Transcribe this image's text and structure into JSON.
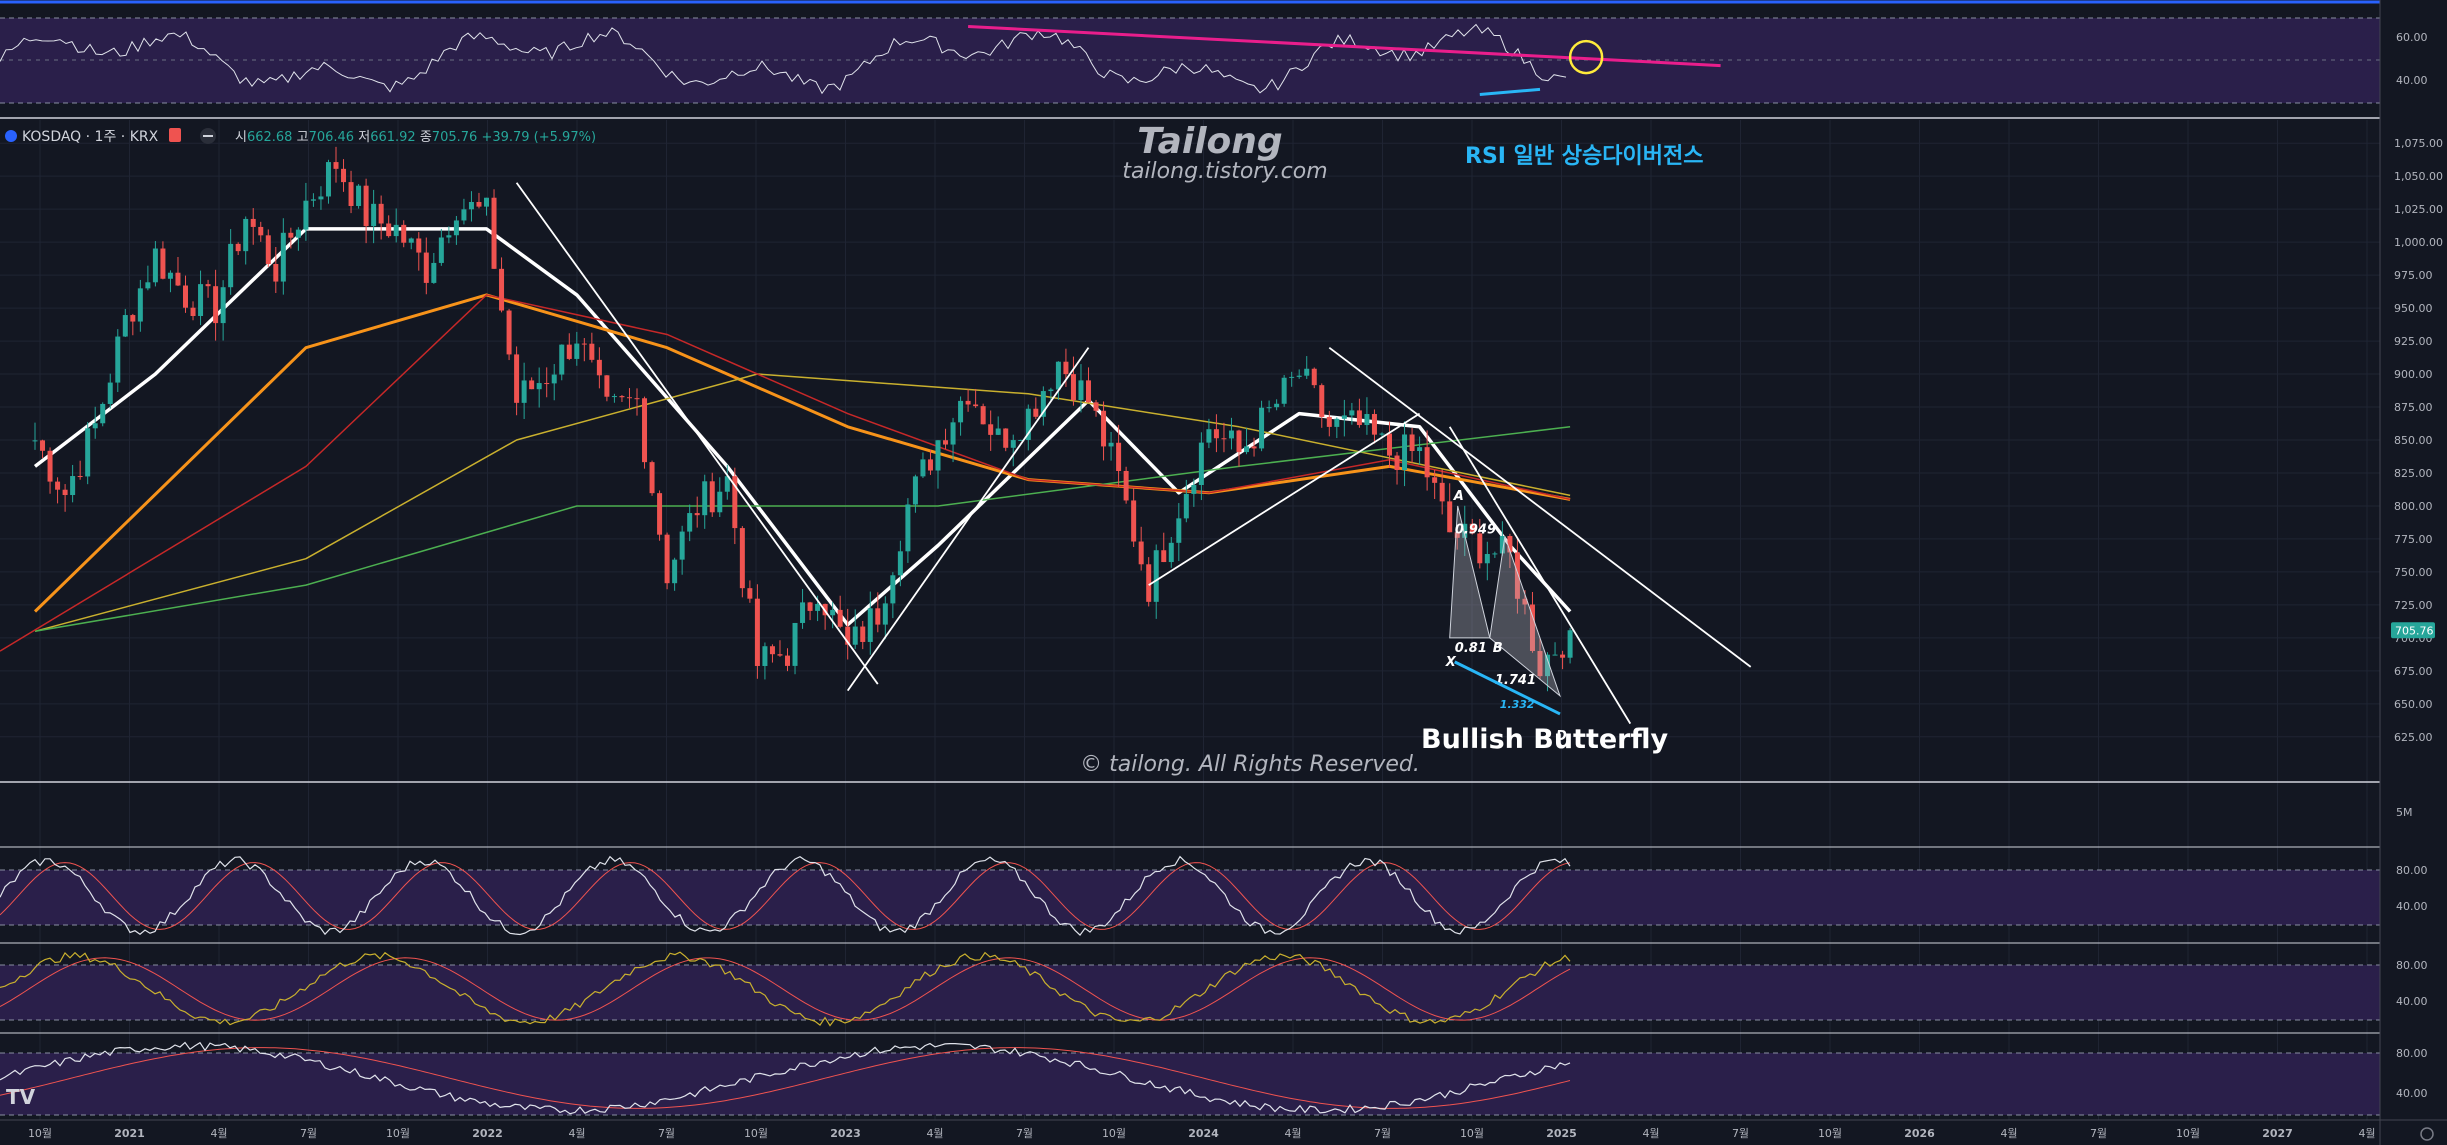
{
  "header": {
    "symbol": "KOSDAQ · 1주 · KRX",
    "open_label": "시",
    "open": "662.68",
    "high_label": "고",
    "high": "706.46",
    "low_label": "저",
    "low": "661.92",
    "close_label": "종",
    "close": "705.76",
    "change": "+39.79 (+5.97%)"
  },
  "watermark": {
    "brand": "Tailong",
    "site": "tailong.tistory.com",
    "copyright": "© tailong. All Rights Reserved."
  },
  "annotations": {
    "rsi_divergence": "RSI 일반 상승다이버전스",
    "pattern_name": "Bullish Butterfly",
    "pattern_points": {
      "X": "X",
      "A": "A",
      "B": "B",
      "D": "D"
    },
    "ratios": {
      "ab": "0.81",
      "bc": "0.949",
      "cd": "1.741",
      "xd": "1.332"
    }
  },
  "price_axis": {
    "ticks": [
      "1,075.00",
      "1,050.00",
      "1,025.00",
      "1,000.00",
      "975.00",
      "950.00",
      "925.00",
      "900.00",
      "875.00",
      "850.00",
      "825.00",
      "800.00",
      "775.00",
      "750.00",
      "725.00",
      "700.00",
      "675.00",
      "650.00",
      "625.00"
    ],
    "last_price_badge": "705.76"
  },
  "rsi_axis": {
    "ticks": [
      "60.00",
      "40.00"
    ]
  },
  "volume_axis": {
    "ticks": [
      "5M"
    ]
  },
  "osc1_axis": {
    "ticks": [
      "80.00",
      "40.00"
    ]
  },
  "osc2_axis": {
    "ticks": [
      "80.00",
      "40.00"
    ]
  },
  "osc3_axis": {
    "ticks": [
      "80.00",
      "40.00"
    ]
  },
  "time_axis": {
    "ticks": [
      "10월",
      "2021",
      "4월",
      "7월",
      "10월",
      "2022",
      "4월",
      "7월",
      "10월",
      "2023",
      "4월",
      "7월",
      "10월",
      "2024",
      "4월",
      "7월",
      "10월",
      "2025",
      "4월",
      "7월",
      "10월",
      "2026",
      "4월",
      "7월",
      "10월",
      "2027",
      "4월"
    ]
  },
  "logo": "TV",
  "colors": {
    "background": "#131722",
    "bull": "#26a69a",
    "bear": "#ef5350",
    "ma_fast": "#ffffff",
    "ma_mid": "#f7931a",
    "ma_slow": "#c62828",
    "ma_long_yellow": "#c9b02e",
    "ma_long_green": "#4caf50",
    "rsi_trend": "#e91e8c",
    "divergence": "#29b6f6",
    "band": "#2a1f4a"
  },
  "chart_data": {
    "type": "candlestick",
    "title": "",
    "ylim": [
      615,
      1085
    ],
    "x_range": [
      "2020-09",
      "2027-04"
    ],
    "last_close": 705.76,
    "ohlc_latest": {
      "open": 662.68,
      "high": 706.46,
      "low": 661.92,
      "close": 705.76,
      "change": 39.79,
      "change_pct": 5.97
    },
    "close_path": [
      {
        "date": "2020-09",
        "close": 850
      },
      {
        "date": "2020-10",
        "close": 810
      },
      {
        "date": "2020-11",
        "close": 860
      },
      {
        "date": "2020-12",
        "close": 940
      },
      {
        "date": "2021-01",
        "close": 990
      },
      {
        "date": "2021-02",
        "close": 960
      },
      {
        "date": "2021-03",
        "close": 950
      },
      {
        "date": "2021-04",
        "close": 1020
      },
      {
        "date": "2021-05",
        "close": 980
      },
      {
        "date": "2021-06",
        "close": 1030
      },
      {
        "date": "2021-07",
        "close": 1060
      },
      {
        "date": "2021-08",
        "close": 1020
      },
      {
        "date": "2021-09",
        "close": 1010
      },
      {
        "date": "2021-10",
        "close": 980
      },
      {
        "date": "2021-11",
        "close": 1030
      },
      {
        "date": "2021-12",
        "close": 1020
      },
      {
        "date": "2022-01",
        "close": 880
      },
      {
        "date": "2022-02",
        "close": 900
      },
      {
        "date": "2022-03",
        "close": 930
      },
      {
        "date": "2022-04",
        "close": 870
      },
      {
        "date": "2022-05",
        "close": 880
      },
      {
        "date": "2022-06",
        "close": 750
      },
      {
        "date": "2022-07",
        "close": 800
      },
      {
        "date": "2022-08",
        "close": 820
      },
      {
        "date": "2022-09",
        "close": 680
      },
      {
        "date": "2022-10",
        "close": 690
      },
      {
        "date": "2022-11",
        "close": 740
      },
      {
        "date": "2022-12",
        "close": 690
      },
      {
        "date": "2023-01",
        "close": 720
      },
      {
        "date": "2023-02",
        "close": 800
      },
      {
        "date": "2023-03",
        "close": 850
      },
      {
        "date": "2023-04",
        "close": 890
      },
      {
        "date": "2023-05",
        "close": 850
      },
      {
        "date": "2023-06",
        "close": 870
      },
      {
        "date": "2023-07",
        "close": 910
      },
      {
        "date": "2023-08",
        "close": 880
      },
      {
        "date": "2023-09",
        "close": 820
      },
      {
        "date": "2023-10",
        "close": 740
      },
      {
        "date": "2023-11",
        "close": 800
      },
      {
        "date": "2023-12",
        "close": 860
      },
      {
        "date": "2024-01",
        "close": 840
      },
      {
        "date": "2024-02",
        "close": 870
      },
      {
        "date": "2024-03",
        "close": 900
      },
      {
        "date": "2024-04",
        "close": 860
      },
      {
        "date": "2024-05",
        "close": 860
      },
      {
        "date": "2024-06",
        "close": 840
      },
      {
        "date": "2024-07",
        "close": 840
      },
      {
        "date": "2024-08",
        "close": 780
      },
      {
        "date": "2024-09",
        "close": 770
      },
      {
        "date": "2024-10",
        "close": 760
      },
      {
        "date": "2024-11",
        "close": 680
      },
      {
        "date": "2024-12",
        "close": 705.76
      }
    ],
    "moving_averages": [
      {
        "points": [
          {
            "date": "2020-09",
            "value": 830
          },
          {
            "date": "2021-01",
            "value": 900
          },
          {
            "date": "2021-06",
            "value": 1010
          },
          {
            "date": "2021-12",
            "value": 1010
          },
          {
            "date": "2022-03",
            "value": 960
          },
          {
            "date": "2022-08",
            "value": 830
          },
          {
            "date": "2022-12",
            "value": 710
          },
          {
            "date": "2023-03",
            "value": 770
          },
          {
            "date": "2023-08",
            "value": 880
          },
          {
            "date": "2023-11",
            "value": 810
          },
          {
            "date": "2024-03",
            "value": 870
          },
          {
            "date": "2024-07",
            "value": 860
          },
          {
            "date": "2024-10",
            "value": 770
          },
          {
            "date": "2024-12",
            "value": 720
          }
        ]
      },
      {
        "points": [
          {
            "date": "2020-09",
            "value": 720
          },
          {
            "date": "2021-06",
            "value": 920
          },
          {
            "date": "2021-12",
            "value": 960
          },
          {
            "date": "2022-06",
            "value": 920
          },
          {
            "date": "2022-12",
            "value": 860
          },
          {
            "date": "2023-06",
            "value": 820
          },
          {
            "date": "2023-12",
            "value": 810
          },
          {
            "date": "2024-06",
            "value": 830
          },
          {
            "date": "2024-12",
            "value": 805
          }
        ]
      },
      {
        "points": [
          {
            "date": "2020-09",
            "value": 705
          },
          {
            "date": "2021-06",
            "value": 760
          },
          {
            "date": "2022-01",
            "value": 850
          },
          {
            "date": "2022-09",
            "value": 900
          },
          {
            "date": "2023-06",
            "value": 885
          },
          {
            "date": "2024-01",
            "value": 860
          },
          {
            "date": "2024-12",
            "value": 808
          }
        ]
      },
      {
        "points": [
          {
            "date": "2020-09",
            "value": 705
          },
          {
            "date": "2021-06",
            "value": 740
          },
          {
            "date": "2022-03",
            "value": 800
          },
          {
            "date": "2023-03",
            "value": 800
          },
          {
            "date": "2024-01",
            "value": 830
          },
          {
            "date": "2024-12",
            "value": 860
          }
        ]
      }
    ],
    "trendlines": [
      {
        "from": {
          "date": "2022-01",
          "value": 1045
        },
        "to": {
          "date": "2023-01",
          "value": 665
        }
      },
      {
        "from": {
          "date": "2022-12",
          "value": 660
        },
        "to": {
          "date": "2023-08",
          "value": 920
        }
      },
      {
        "from": {
          "date": "2023-10",
          "value": 740
        },
        "to": {
          "date": "2024-07",
          "value": 870
        }
      },
      {
        "from": {
          "date": "2024-04",
          "value": 920
        },
        "to": {
          "date": "2025-06",
          "value": 678
        }
      },
      {
        "from": {
          "date": "2024-08",
          "value": 860
        },
        "to": {
          "date": "2025-02",
          "value": 635
        }
      }
    ],
    "rsi": {
      "trend_line": {
        "from": {
          "date": "2023-04",
          "value": 70
        },
        "to": {
          "date": "2025-05",
          "value": 47
        }
      },
      "divergence": {
        "from": {
          "date": "2024-09",
          "value": 30
        },
        "to": {
          "date": "2024-11",
          "value": 33
        }
      },
      "latest_value": 52
    }
  }
}
